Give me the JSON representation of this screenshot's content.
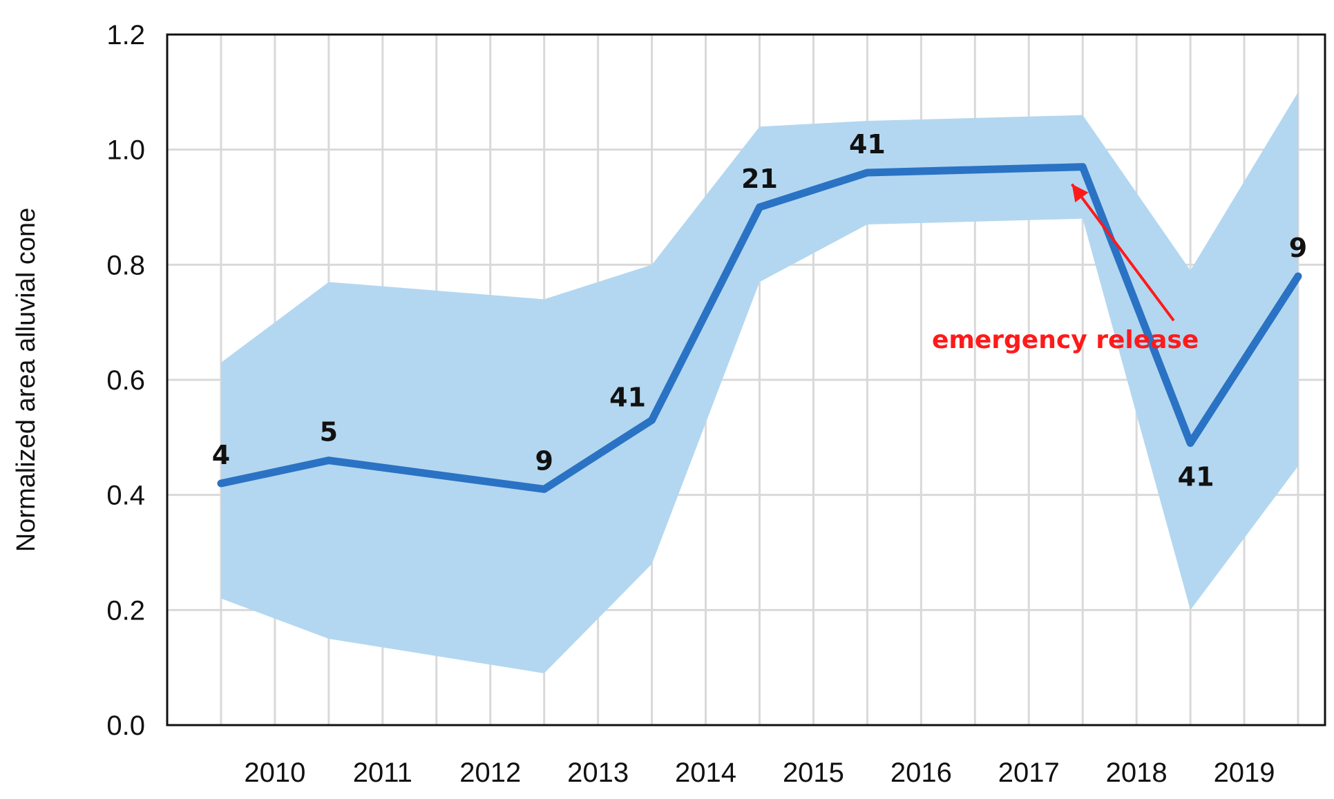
{
  "chart_data": {
    "type": "line",
    "title": "",
    "xlabel": "",
    "ylabel": "Normalized area alluvial cone",
    "ylim": [
      0,
      1.2
    ],
    "x_ticks": [
      "2010",
      "2011",
      "2012",
      "2013",
      "2014",
      "2015",
      "2016",
      "2017",
      "2018",
      "2019"
    ],
    "y_ticks": [
      "0.0",
      "0.2",
      "0.4",
      "0.6",
      "0.8",
      "1.0",
      "1.2"
    ],
    "grid": true,
    "series": [
      {
        "x": [
          2009.5,
          2010.5,
          2012.5,
          2013.5,
          2014.5,
          2015.5,
          2017.5,
          2018.5,
          2019.5
        ],
        "values": [
          0.42,
          0.46,
          0.41,
          0.53,
          0.9,
          0.96,
          0.97,
          0.49,
          0.78
        ],
        "lower": [
          0.22,
          0.15,
          0.09,
          0.28,
          0.77,
          0.87,
          0.88,
          0.2,
          0.45
        ],
        "upper": [
          0.63,
          0.77,
          0.74,
          0.8,
          1.04,
          1.05,
          1.06,
          0.79,
          1.1
        ],
        "point_labels": [
          "4",
          "5",
          "9",
          "41",
          "21",
          "41",
          "",
          "41",
          "9"
        ]
      }
    ],
    "annotations": [
      {
        "text": "emergency release",
        "x": 2016.1,
        "y": 0.655,
        "arrow_to_x": 2017.4,
        "arrow_to_y": 0.94
      }
    ],
    "colors": {
      "line": "#2a72c4",
      "band": "#b3d7f0",
      "annotation": "#ff1a1a",
      "grid": "#d9d9d9",
      "frame": "#111111"
    }
  }
}
